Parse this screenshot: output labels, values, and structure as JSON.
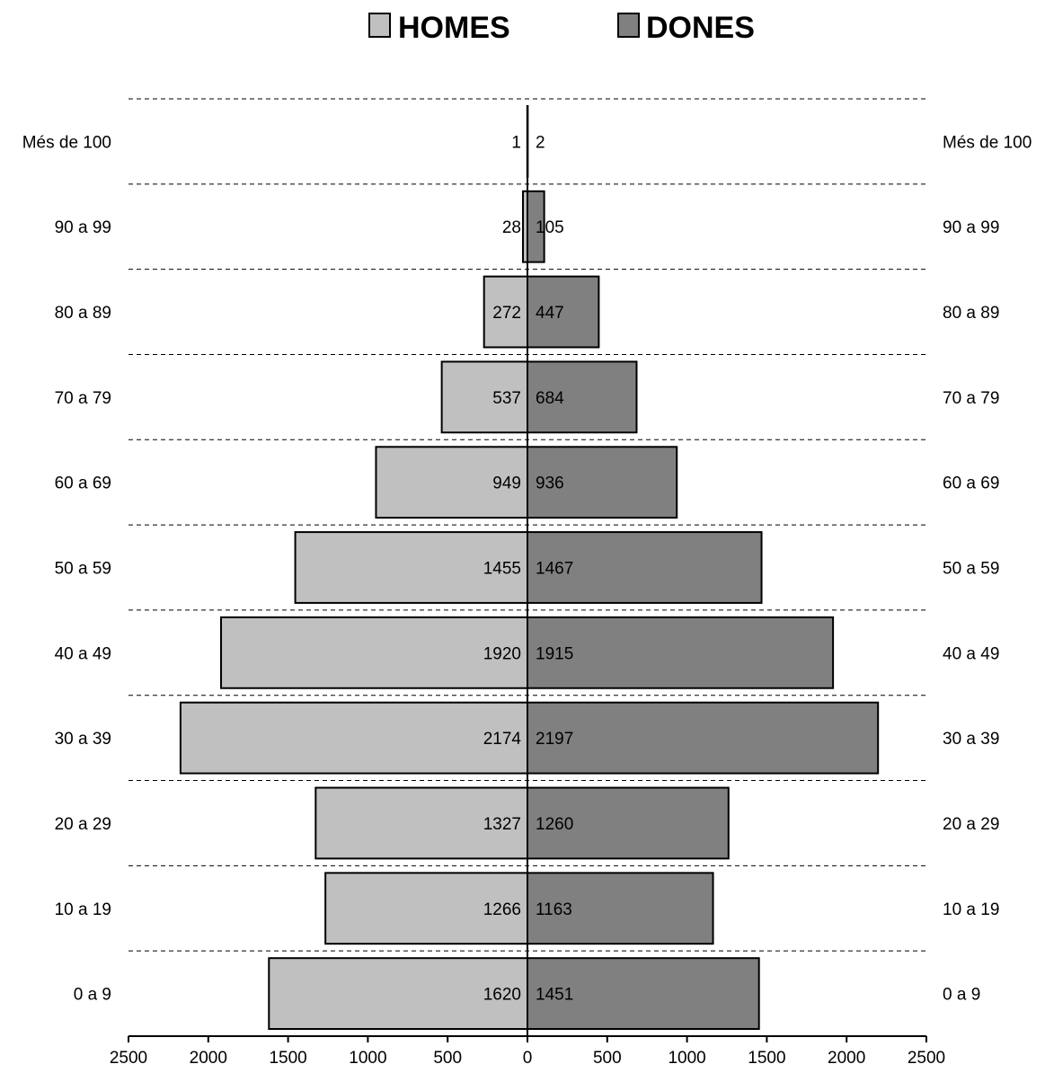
{
  "chart_data": {
    "type": "bar",
    "orientation": "horizontal",
    "layout": "population-pyramid",
    "categories": [
      "Més de 100",
      "90 a 99",
      "80 a 89",
      "70 a 79",
      "60 a 69",
      "50 a 59",
      "40 a 49",
      "30 a 39",
      "20 a 29",
      "10 a 19",
      "0 a 9"
    ],
    "series": [
      {
        "name": "HOMES",
        "side": "left",
        "color": "#c0c0c0",
        "values": [
          1,
          28,
          272,
          537,
          949,
          1455,
          1920,
          2174,
          1327,
          1266,
          1620
        ]
      },
      {
        "name": "DONES",
        "side": "right",
        "color": "#808080",
        "values": [
          2,
          105,
          447,
          684,
          936,
          1467,
          1915,
          2197,
          1260,
          1163,
          1451
        ]
      }
    ],
    "xlim": [
      -2500,
      2500
    ],
    "xticks": [
      -2500,
      -2000,
      -1500,
      -1000,
      -500,
      0,
      500,
      1000,
      1500,
      2000,
      2500
    ],
    "xtick_labels": [
      "2500",
      "2000",
      "1500",
      "1000",
      "500",
      "0",
      "500",
      "1000",
      "1500",
      "2000",
      "2500"
    ],
    "category_labels_both_sides": true,
    "grid": "dashed horizontal separators",
    "legend": "top-center",
    "bar_outline_color": "#000000"
  }
}
